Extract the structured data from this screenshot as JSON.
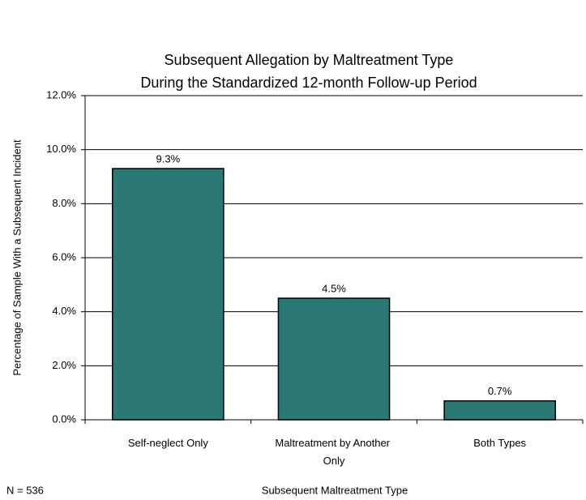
{
  "chart_data": {
    "type": "bar",
    "title": "Subsequent Allegation by Maltreatment Type",
    "subtitle": "During the Standardized 12-month Follow-up Period",
    "categories": [
      "Self-neglect Only",
      "Maltreatment by Another Only",
      "Both Types"
    ],
    "values": [
      9.3,
      4.5,
      0.7
    ],
    "value_labels": [
      "9.3%",
      "4.5%",
      "0.7%"
    ],
    "color": "#2a7977",
    "ylim": [
      0,
      12
    ],
    "yticks": [
      {
        "value": 0,
        "label": "0.0%"
      },
      {
        "value": 2,
        "label": "2.0%"
      },
      {
        "value": 4,
        "label": "4.0%"
      },
      {
        "value": 6,
        "label": "6.0%"
      },
      {
        "value": 8,
        "label": "8.0%"
      },
      {
        "value": 10,
        "label": "10.0%"
      },
      {
        "value": 12,
        "label": "12.0%"
      }
    ],
    "grid": true,
    "y_label": "Percentage of Sample With a Subsequent Incident",
    "x_label": "Subsequent Maltreatment Type",
    "annotation": "N = 536"
  }
}
